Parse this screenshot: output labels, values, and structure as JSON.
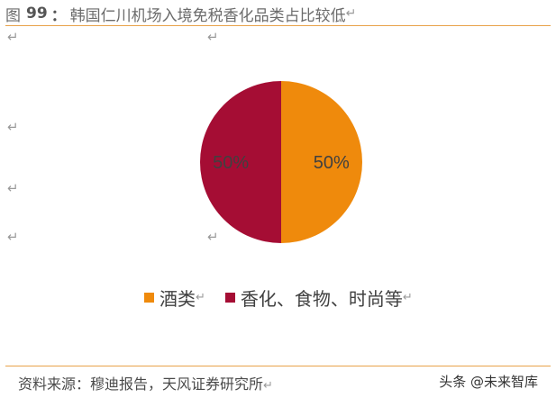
{
  "figure": {
    "label": "图",
    "number": "99",
    "separator": "：",
    "title": "韩国仁川机场入境免税香化品类占比较低"
  },
  "chart_data": {
    "type": "pie",
    "title": "韩国仁川机场入境免税香化品类占比较低",
    "slices": [
      {
        "name": "酒类",
        "value": 50,
        "label": "50%",
        "color": "#ef8a0c"
      },
      {
        "name": "香化、食物、时尚等",
        "value": 50,
        "label": "50%",
        "color": "#a50d34"
      }
    ],
    "legend_position": "bottom",
    "start_angle": "12 o'clock, clockwise"
  },
  "legend": {
    "items": [
      {
        "label": "酒类",
        "color": "#ef8a0c"
      },
      {
        "label": "香化、食物、时尚等",
        "color": "#a50d34"
      }
    ]
  },
  "paragraph_mark": "↵",
  "footer": {
    "source": "资料来源：穆迪报告，天风证券研究所",
    "watermark": "头条 @未来智库"
  }
}
